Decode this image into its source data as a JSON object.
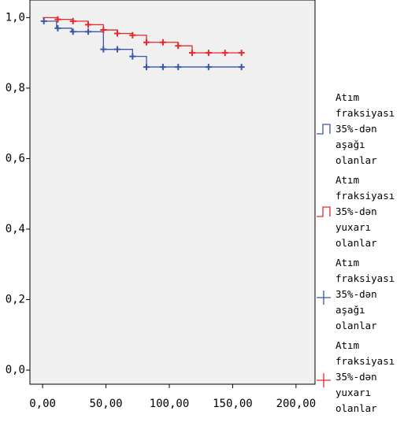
{
  "chart_data": {
    "type": "survival",
    "xlim": [
      -10,
      215
    ],
    "ylim": [
      -0.04,
      1.05
    ],
    "xticks": [
      {
        "value": 0,
        "label": "0,00"
      },
      {
        "value": 50,
        "label": "50,00"
      },
      {
        "value": 100,
        "label": "100,00"
      },
      {
        "value": 150,
        "label": "150,00"
      },
      {
        "value": 200,
        "label": "200,00"
      }
    ],
    "yticks": [
      {
        "value": 0,
        "label": "0,0"
      },
      {
        "value": 0.2,
        "label": "0,2"
      },
      {
        "value": 0.4,
        "label": "0,4"
      },
      {
        "value": 0.6,
        "label": "0,6"
      },
      {
        "value": 0.8,
        "label": "0,8"
      },
      {
        "value": 1.0,
        "label": "1,0"
      }
    ],
    "series": [
      {
        "name": "Atım fraksiyası 35%-dən aşağı olanlar",
        "color": "#3a56a8",
        "kind": "step",
        "x": [
          0,
          11,
          23,
          48,
          71,
          82,
          157
        ],
        "values": [
          0.99,
          0.97,
          0.96,
          0.91,
          0.89,
          0.86,
          0.86
        ]
      },
      {
        "name": "Atım fraksiyası 35%-dən yuxarı olanlar",
        "color": "#e8262a",
        "kind": "step",
        "x": [
          0,
          12,
          24,
          36,
          48,
          59,
          71,
          82,
          107,
          118,
          157
        ],
        "values": [
          1.0,
          0.995,
          0.99,
          0.98,
          0.965,
          0.955,
          0.95,
          0.93,
          0.92,
          0.9,
          0.9
        ]
      },
      {
        "name": "Atım fraksiyası 35%-dən aşağı olanlar",
        "color": "#3a56a8",
        "kind": "censor",
        "x": [
          1,
          12,
          24,
          36,
          48,
          59,
          71,
          82,
          95,
          107,
          131,
          157
        ],
        "values": [
          0.99,
          0.97,
          0.96,
          0.96,
          0.91,
          0.91,
          0.89,
          0.86,
          0.86,
          0.86,
          0.86,
          0.86
        ]
      },
      {
        "name": "Atım fraksiyası 35%-dən yuxarı olanlar",
        "color": "#e8262a",
        "kind": "censor",
        "x": [
          12,
          24,
          36,
          48,
          59,
          71,
          82,
          95,
          107,
          118,
          131,
          144,
          157
        ],
        "values": [
          0.995,
          0.99,
          0.98,
          0.965,
          0.955,
          0.95,
          0.93,
          0.93,
          0.92,
          0.9,
          0.9,
          0.9,
          0.9
        ]
      }
    ]
  }
}
